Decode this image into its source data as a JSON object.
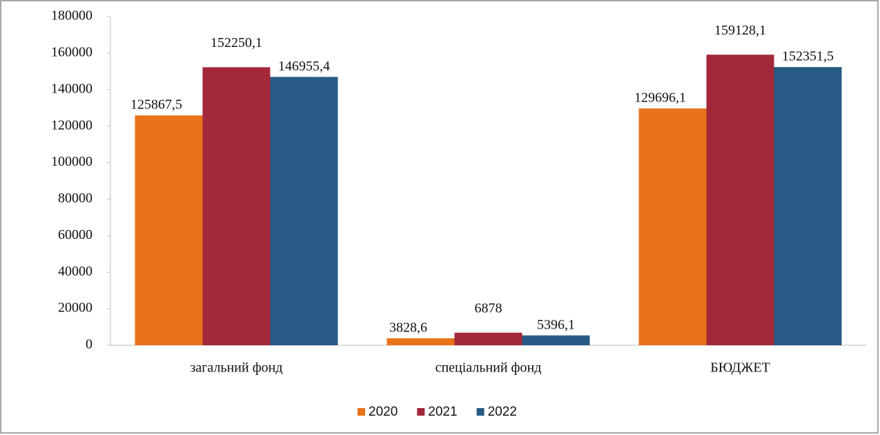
{
  "chart_data": {
    "type": "bar",
    "categories": [
      "загальний фонд",
      "спеціальний фонд",
      "БЮДЖЕТ"
    ],
    "series": [
      {
        "name": "2020",
        "color": "#e8731a",
        "values": [
          125867.5,
          3828.6,
          129696.1
        ],
        "value_labels": [
          "125867,5",
          "3828,6",
          "129696,1"
        ]
      },
      {
        "name": "2021",
        "color": "#a3283a",
        "values": [
          152250.1,
          6878,
          159128.1
        ],
        "value_labels": [
          "152250,1",
          "6878",
          "159128,1"
        ]
      },
      {
        "name": "2022",
        "color": "#275b85",
        "values": [
          146955.4,
          5396.1,
          152351.5
        ],
        "value_labels": [
          "146955,4",
          "5396,1",
          "152351,5"
        ]
      }
    ],
    "ylim": [
      0,
      180000
    ],
    "yticks": [
      0,
      20000,
      40000,
      60000,
      80000,
      100000,
      120000,
      140000,
      160000,
      180000
    ],
    "legend": "bottom"
  }
}
